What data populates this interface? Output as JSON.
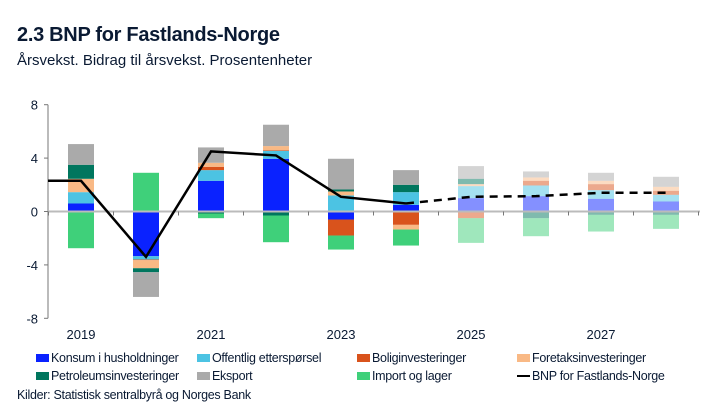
{
  "title": "2.3 BNP for Fastlands-Norge",
  "subtitle": "Årsvekst. Bidrag til årsvekst. Prosentenheter",
  "source": "Kilder: Statistisk sentralbyrå og Norges Bank",
  "chart_data": {
    "type": "bar",
    "stacked": true,
    "categories": [
      "2019",
      "2020",
      "2021",
      "2022",
      "2023",
      "2024",
      "2025",
      "2026",
      "2027",
      "2028"
    ],
    "x_tick_labels": [
      "2019",
      "2021",
      "2023",
      "2025",
      "2027"
    ],
    "forecast_from": "2025",
    "ylim": [
      -8,
      8
    ],
    "y_ticks": [
      -8,
      -4,
      0,
      4,
      8
    ],
    "grid": false,
    "legend_position": "bottom",
    "series": [
      {
        "name": "Konsum i husholdninger",
        "color": "#0a22ff",
        "values": [
          0.6,
          -3.35,
          2.3,
          3.95,
          -0.6,
          0.5,
          1.0,
          1.15,
          0.95,
          0.75
        ]
      },
      {
        "name": "Offentlig etterspørsel",
        "color": "#4cc3e3",
        "values": [
          0.85,
          -0.25,
          0.8,
          0.6,
          1.2,
          0.95,
          0.9,
          0.8,
          0.65,
          0.5
        ]
      },
      {
        "name": "Boliginvesteringer",
        "color": "#d9531c",
        "values": [
          -0.05,
          -0.05,
          0.25,
          0.05,
          -1.2,
          -1.0,
          -0.5,
          0.35,
          0.45,
          0.3
        ]
      },
      {
        "name": "Foretaksinvesteringer",
        "color": "#f9b985",
        "values": [
          1.0,
          -0.6,
          0.3,
          0.3,
          0.3,
          -0.35,
          0.15,
          0.25,
          0.25,
          0.3
        ]
      },
      {
        "name": "Petroleumsinvesteringer",
        "color": "#00765e",
        "values": [
          1.05,
          -0.3,
          -0.15,
          -0.3,
          0.15,
          0.55,
          0.4,
          -0.5,
          -0.25,
          -0.25
        ]
      },
      {
        "name": "Eksport",
        "color": "#aaaaaa",
        "values": [
          1.55,
          -1.85,
          1.15,
          1.6,
          2.3,
          1.1,
          0.95,
          0.45,
          0.6,
          0.75
        ]
      },
      {
        "name": "Import og lager",
        "color": "#3fd07a",
        "values": [
          -2.7,
          2.9,
          -0.35,
          -2.0,
          -1.05,
          -1.2,
          -1.85,
          -1.35,
          -1.25,
          -1.05
        ]
      }
    ],
    "line": {
      "name": "BNP for Fastlands-Norge",
      "color": "#000000",
      "values": [
        2.3,
        -3.4,
        4.5,
        4.2,
        1.1,
        0.6,
        1.1,
        1.15,
        1.4,
        1.4
      ]
    }
  }
}
